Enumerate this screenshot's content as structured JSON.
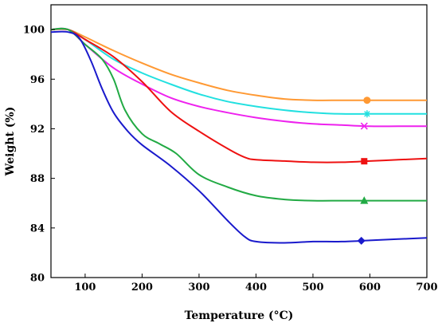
{
  "chart_data": {
    "type": "line",
    "xlabel": "Temperature (°C)",
    "ylabel": "Weight (%)",
    "xlim": [
      40,
      700
    ],
    "ylim": [
      80,
      102
    ],
    "x_ticks": [
      100,
      200,
      300,
      400,
      500,
      600,
      700
    ],
    "y_ticks": [
      80,
      84,
      88,
      92,
      96,
      100
    ],
    "grid": false,
    "legend": "none",
    "series": [
      {
        "color": "#ff9933",
        "marker": "circle",
        "marker_at": 595,
        "points": [
          [
            40,
            100.0
          ],
          [
            70,
            100.0
          ],
          [
            100,
            99.4
          ],
          [
            150,
            98.3
          ],
          [
            200,
            97.3
          ],
          [
            250,
            96.4
          ],
          [
            300,
            95.7
          ],
          [
            350,
            95.1
          ],
          [
            400,
            94.7
          ],
          [
            450,
            94.4
          ],
          [
            500,
            94.3
          ],
          [
            550,
            94.3
          ],
          [
            600,
            94.3
          ],
          [
            650,
            94.3
          ],
          [
            700,
            94.3
          ]
        ]
      },
      {
        "color": "#22e0e0",
        "marker": "star",
        "marker_at": 595,
        "points": [
          [
            40,
            100.0
          ],
          [
            70,
            100.0
          ],
          [
            100,
            99.2
          ],
          [
            150,
            97.6
          ],
          [
            200,
            96.5
          ],
          [
            250,
            95.6
          ],
          [
            300,
            94.8
          ],
          [
            350,
            94.2
          ],
          [
            400,
            93.8
          ],
          [
            450,
            93.5
          ],
          [
            500,
            93.3
          ],
          [
            550,
            93.2
          ],
          [
            600,
            93.2
          ],
          [
            650,
            93.2
          ],
          [
            700,
            93.2
          ]
        ]
      },
      {
        "color": "#ee22ee",
        "marker": "x",
        "marker_at": 590,
        "points": [
          [
            40,
            100.0
          ],
          [
            70,
            100.0
          ],
          [
            100,
            98.8
          ],
          [
            150,
            96.9
          ],
          [
            200,
            95.6
          ],
          [
            250,
            94.5
          ],
          [
            300,
            93.8
          ],
          [
            350,
            93.3
          ],
          [
            400,
            92.9
          ],
          [
            450,
            92.6
          ],
          [
            500,
            92.4
          ],
          [
            550,
            92.3
          ],
          [
            600,
            92.2
          ],
          [
            650,
            92.2
          ],
          [
            700,
            92.2
          ]
        ]
      },
      {
        "color": "#ee1111",
        "marker": "square",
        "marker_at": 590,
        "points": [
          [
            40,
            100.0
          ],
          [
            70,
            100.0
          ],
          [
            100,
            99.2
          ],
          [
            150,
            97.8
          ],
          [
            200,
            95.8
          ],
          [
            250,
            93.4
          ],
          [
            300,
            91.8
          ],
          [
            350,
            90.4
          ],
          [
            380,
            89.7
          ],
          [
            400,
            89.5
          ],
          [
            450,
            89.4
          ],
          [
            500,
            89.3
          ],
          [
            550,
            89.3
          ],
          [
            600,
            89.4
          ],
          [
            650,
            89.5
          ],
          [
            700,
            89.6
          ]
        ]
      },
      {
        "color": "#22aa44",
        "marker": "triangle",
        "marker_at": 590,
        "points": [
          [
            40,
            100.0
          ],
          [
            70,
            100.0
          ],
          [
            100,
            98.8
          ],
          [
            130,
            97.6
          ],
          [
            150,
            96.0
          ],
          [
            170,
            93.5
          ],
          [
            200,
            91.6
          ],
          [
            230,
            90.8
          ],
          [
            260,
            90.0
          ],
          [
            300,
            88.3
          ],
          [
            350,
            87.3
          ],
          [
            400,
            86.6
          ],
          [
            450,
            86.3
          ],
          [
            500,
            86.2
          ],
          [
            550,
            86.2
          ],
          [
            600,
            86.2
          ],
          [
            650,
            86.2
          ],
          [
            700,
            86.2
          ]
        ]
      },
      {
        "color": "#1a1acc",
        "marker": "diamond",
        "marker_at": 585,
        "points": [
          [
            40,
            99.8
          ],
          [
            70,
            99.8
          ],
          [
            90,
            99.3
          ],
          [
            110,
            97.5
          ],
          [
            130,
            95.2
          ],
          [
            150,
            93.3
          ],
          [
            175,
            91.8
          ],
          [
            200,
            90.7
          ],
          [
            250,
            89.0
          ],
          [
            300,
            87.0
          ],
          [
            350,
            84.6
          ],
          [
            380,
            83.3
          ],
          [
            400,
            82.9
          ],
          [
            450,
            82.8
          ],
          [
            500,
            82.9
          ],
          [
            550,
            82.9
          ],
          [
            600,
            83.0
          ],
          [
            650,
            83.1
          ],
          [
            700,
            83.2
          ]
        ]
      }
    ]
  }
}
